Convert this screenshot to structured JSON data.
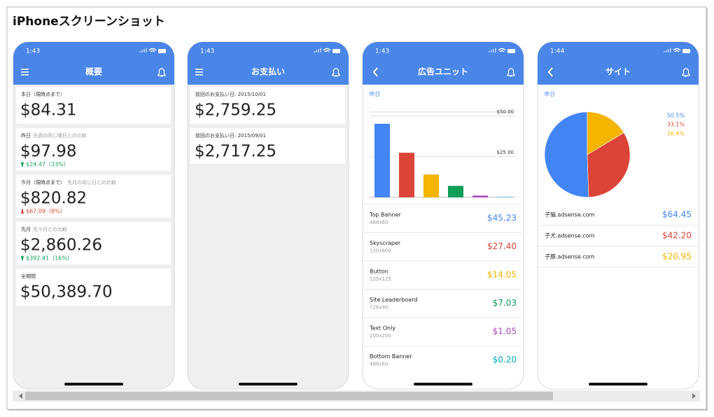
{
  "title": "iPhoneスクリーンショット",
  "screens": [
    {
      "time": "1:43",
      "header": "概要",
      "cards": [
        {
          "label": "本日（現時点まで）",
          "amount": "$84.31"
        },
        {
          "label": "昨日",
          "note": "先週の同じ曜日との比較",
          "amount": "$97.98",
          "change": "$24.47（33%）",
          "trend": "up"
        },
        {
          "label": "今月（現時点まで）",
          "note": "先月の同じ日との比較",
          "amount": "$820.82",
          "change": "$67.09（8%）",
          "trend": "down"
        },
        {
          "label": "先月",
          "note": "先々月との比較",
          "amount": "$2,860.26",
          "change": "$392.41（16%）",
          "trend": "up"
        },
        {
          "label": "全期間",
          "amount": "$50,389.70"
        }
      ]
    },
    {
      "time": "1:43",
      "header": "お支払い",
      "cards": [
        {
          "label": "前回のお支払い日: 2015/10/01",
          "amount": "$2,759.25"
        },
        {
          "label": "前回のお支払い日: 2015/09/01",
          "amount": "$2,717.25"
        }
      ]
    },
    {
      "time": "1:43",
      "header": "広告ユニット",
      "section": "昨日",
      "chart": {
        "type": "bar",
        "categories": [
          "Top Banner",
          "Skyscraper",
          "Button",
          "Site Leaderboard",
          "Text Only",
          "Bottom Banner"
        ],
        "sizes": [
          "468x60",
          "120x600",
          "125x125",
          "728x90",
          "200x200",
          "468x60"
        ],
        "values": [
          45.23,
          27.4,
          14.05,
          7.03,
          1.05,
          0.2
        ],
        "value_labels": [
          "$45.23",
          "$27.40",
          "$14.05",
          "$7.03",
          "$1.05",
          "$0.20"
        ],
        "colors": [
          "#4285f4",
          "#db4437",
          "#f4b400",
          "#0f9d58",
          "#ab47bc",
          "#00acc1"
        ],
        "ylim": [
          0,
          52.5
        ],
        "yticks": [
          {
            "value": 25,
            "label": "$25.00"
          },
          {
            "value": 50,
            "label": "$50.00"
          }
        ]
      }
    },
    {
      "time": "1:44",
      "header": "サイト",
      "section": "昨日",
      "chart": {
        "type": "pie",
        "categories": [
          "子猫.adsense.com",
          "子犬.adsense.com",
          "子豚.adsense.com"
        ],
        "values": [
          50.5,
          33.1,
          16.4
        ],
        "value_labels": [
          "50.5%",
          "33.1%",
          "16.4%"
        ],
        "amounts": [
          "$64.45",
          "$42.20",
          "$20.95"
        ],
        "colors": [
          "#4285f4",
          "#db4437",
          "#f4b400"
        ]
      }
    }
  ]
}
